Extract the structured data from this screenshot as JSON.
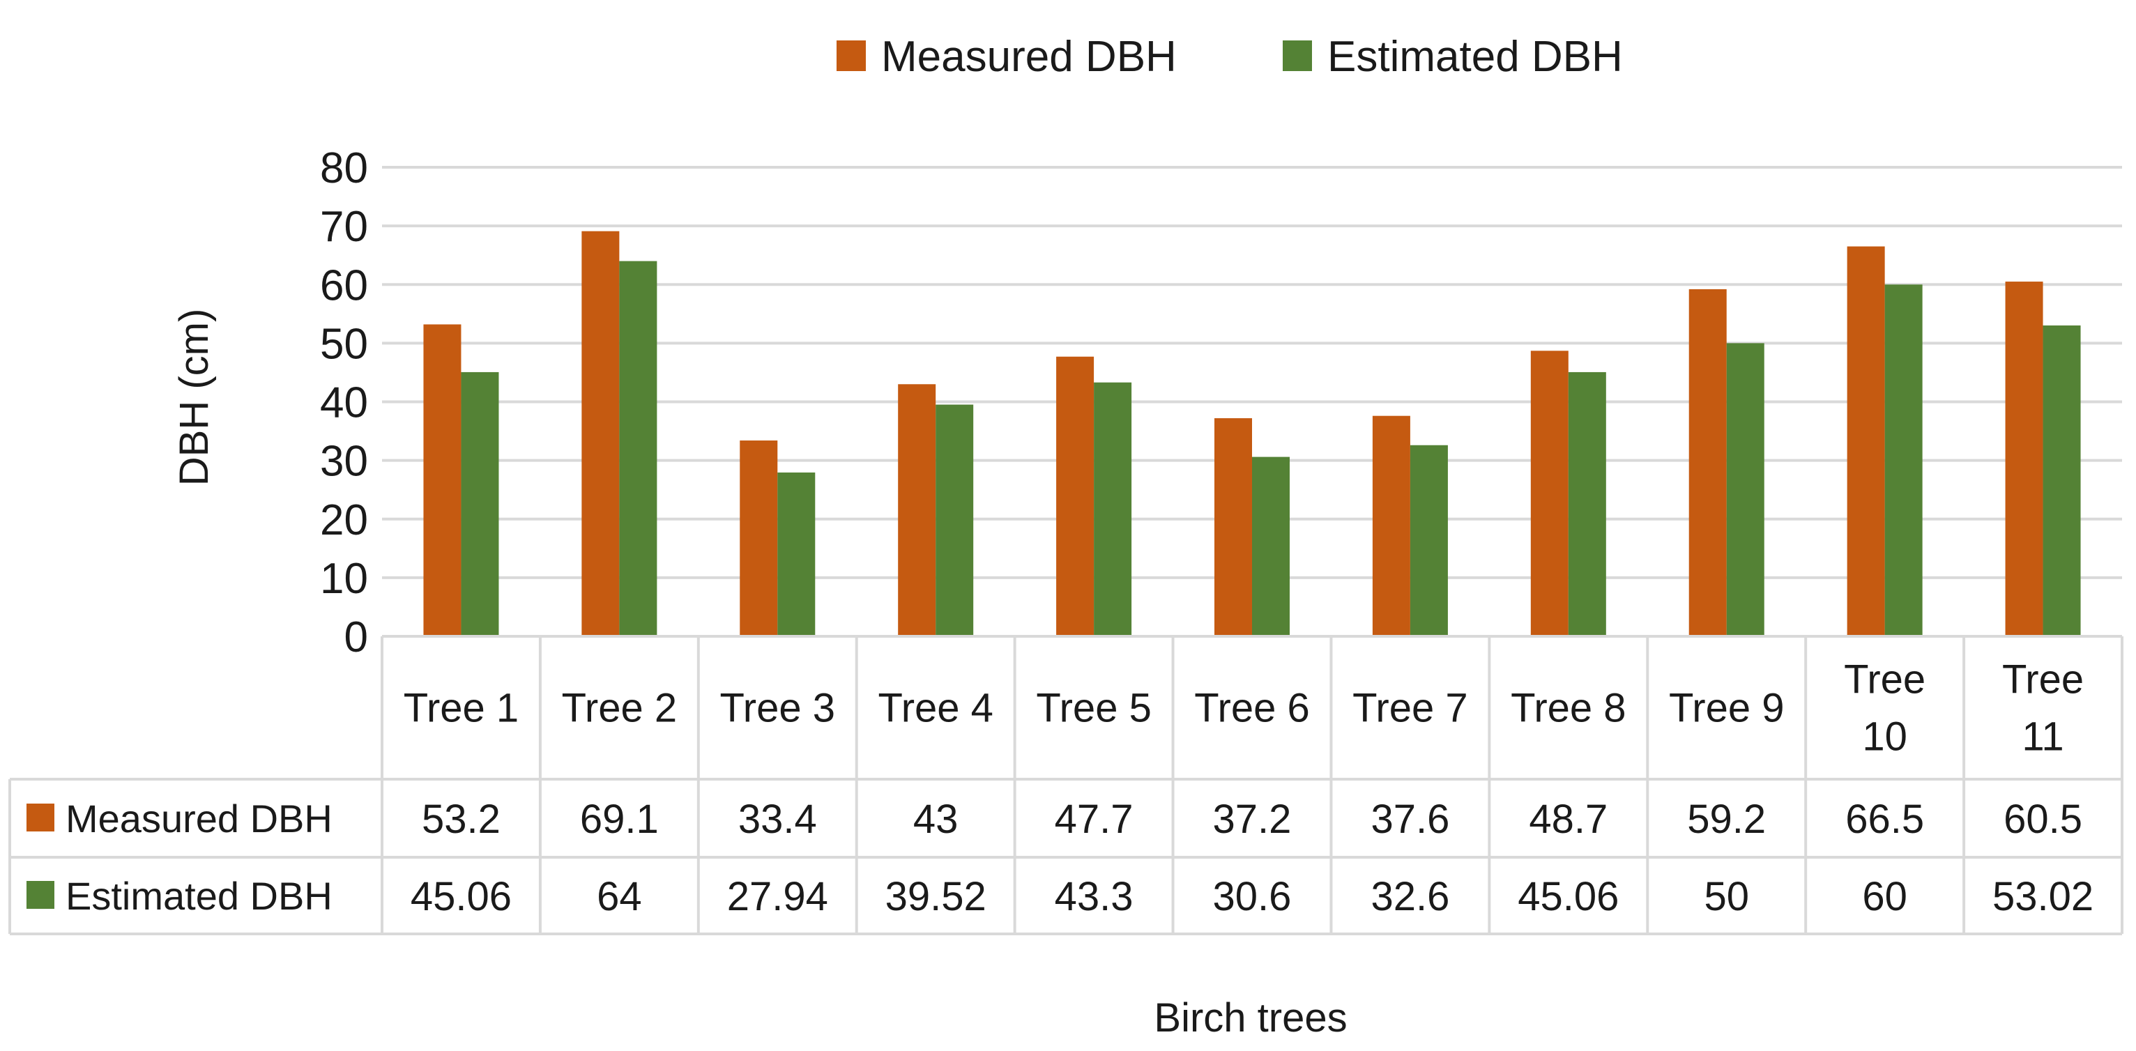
{
  "chart_data": {
    "type": "bar",
    "title": "",
    "xlabel": "Birch trees",
    "ylabel": "DBH (cm)",
    "ylim": [
      0,
      80
    ],
    "y_ticks": [
      "0",
      "10",
      "20",
      "30",
      "40",
      "50",
      "60",
      "70",
      "80"
    ],
    "gridlines": true,
    "legend_position": "top-center",
    "categories": [
      [
        "Tree 1"
      ],
      [
        "Tree 2"
      ],
      [
        "Tree 3"
      ],
      [
        "Tree 4"
      ],
      [
        "Tree 5"
      ],
      [
        "Tree 6"
      ],
      [
        "Tree 7"
      ],
      [
        "Tree 8"
      ],
      [
        "Tree 9"
      ],
      [
        "Tree",
        "10"
      ],
      [
        "Tree",
        "11"
      ]
    ],
    "series": [
      {
        "name": "Measured DBH",
        "color": "#C55A11",
        "values": [
          53.2,
          69.1,
          33.4,
          43,
          47.7,
          37.2,
          37.6,
          48.7,
          59.2,
          66.5,
          60.5
        ],
        "labels": [
          "53.2",
          "69.1",
          "33.4",
          "43",
          "47.7",
          "37.2",
          "37.6",
          "48.7",
          "59.2",
          "66.5",
          "60.5"
        ]
      },
      {
        "name": "Estimated DBH",
        "color": "#548235",
        "values": [
          45.06,
          64,
          27.94,
          39.52,
          43.3,
          30.6,
          32.6,
          45.06,
          50,
          60,
          53.02
        ],
        "labels": [
          "45.06",
          "64",
          "27.94",
          "39.52",
          "43.3",
          "30.6",
          "32.6",
          "45.06",
          "50",
          "60",
          "53.02"
        ]
      }
    ]
  }
}
